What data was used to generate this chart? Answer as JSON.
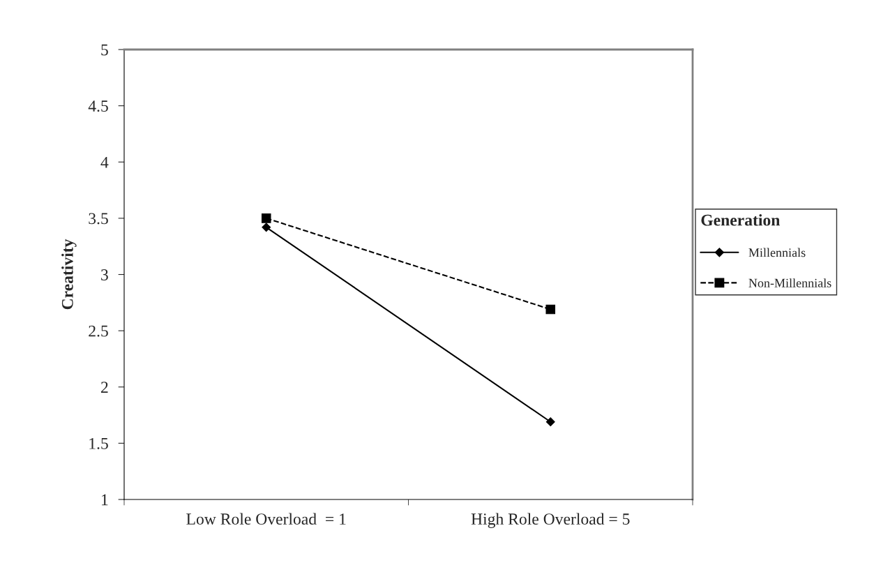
{
  "chart_data": {
    "type": "line",
    "ylabel": "Creativity",
    "legend_title": "Generation",
    "categories": [
      "Low Role Overload  = 1",
      "High Role Overload = 5"
    ],
    "series": [
      {
        "name": "Millennials",
        "color": "#000000",
        "values": [
          3.42,
          1.69
        ],
        "marker": "diamond",
        "line_style": "solid"
      },
      {
        "name": "Non-Millennials",
        "color": "#000000",
        "values": [
          3.5,
          2.69
        ],
        "marker": "square",
        "line_style": "dashed"
      }
    ],
    "ylim": [
      1,
      5
    ],
    "yticks": [
      1,
      1.5,
      2,
      2.5,
      3,
      3.5,
      4,
      4.5,
      5
    ],
    "grid": false,
    "legend": "right"
  }
}
